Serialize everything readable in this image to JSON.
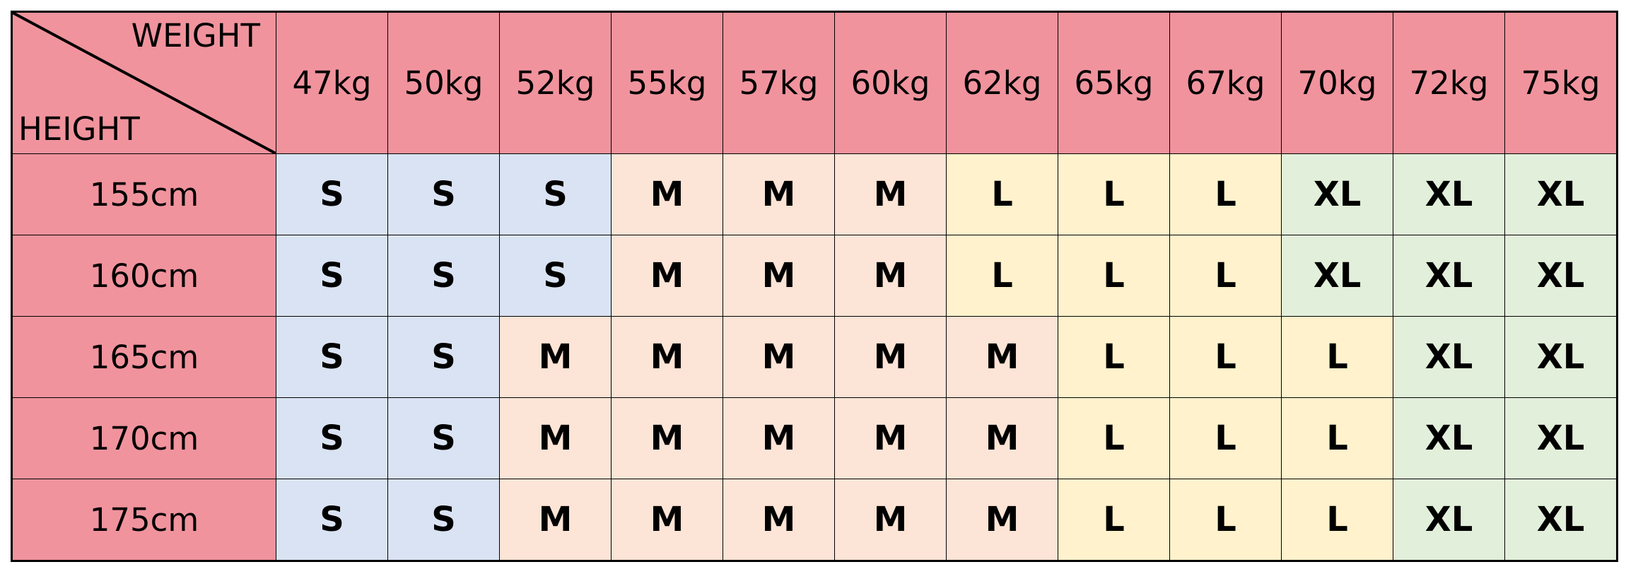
{
  "table": {
    "corner": {
      "top_label": "WEIGHT",
      "bottom_label": "HEIGHT"
    },
    "columns": [
      "47kg",
      "50kg",
      "52kg",
      "55kg",
      "57kg",
      "60kg",
      "62kg",
      "65kg",
      "67kg",
      "70kg",
      "72kg",
      "75kg"
    ],
    "rows": [
      {
        "label": "155cm",
        "cells": [
          "S",
          "S",
          "S",
          "M",
          "M",
          "M",
          "L",
          "L",
          "L",
          "XL",
          "XL",
          "XL"
        ]
      },
      {
        "label": "160cm",
        "cells": [
          "S",
          "S",
          "S",
          "M",
          "M",
          "M",
          "L",
          "L",
          "L",
          "XL",
          "XL",
          "XL"
        ]
      },
      {
        "label": "165cm",
        "cells": [
          "S",
          "S",
          "M",
          "M",
          "M",
          "M",
          "M",
          "L",
          "L",
          "L",
          "XL",
          "XL"
        ]
      },
      {
        "label": "170cm",
        "cells": [
          "S",
          "S",
          "M",
          "M",
          "M",
          "M",
          "M",
          "L",
          "L",
          "L",
          "XL",
          "XL"
        ]
      },
      {
        "label": "175cm",
        "cells": [
          "S",
          "S",
          "M",
          "M",
          "M",
          "M",
          "M",
          "L",
          "L",
          "L",
          "XL",
          "XL"
        ]
      }
    ],
    "header_color": "#f0939d",
    "size_colors": {
      "S": "#dae3f3",
      "M": "#fce4d6",
      "L": "#fff2cc",
      "XL": "#e2efda"
    }
  }
}
